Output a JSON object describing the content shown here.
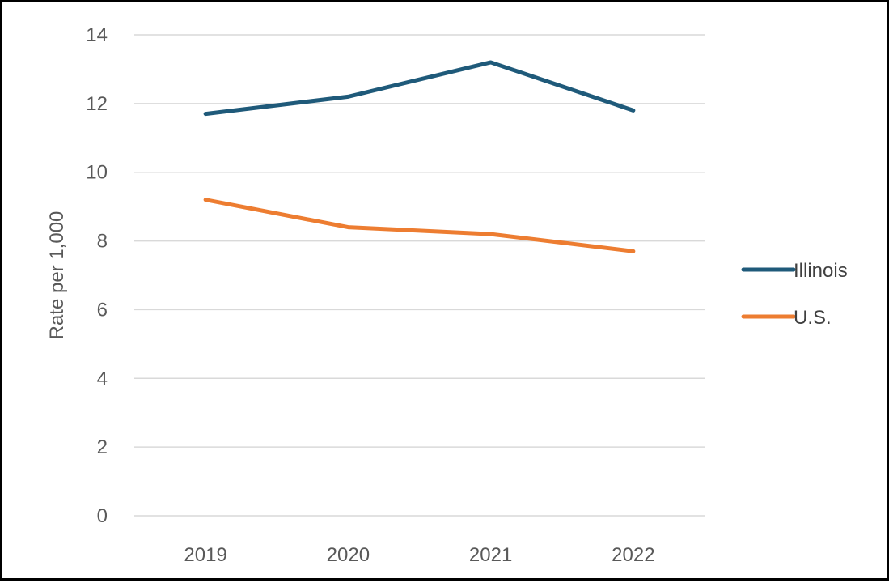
{
  "chart_data": {
    "type": "line",
    "categories": [
      "2019",
      "2020",
      "2021",
      "2022"
    ],
    "series": [
      {
        "name": "Illinois",
        "values": [
          11.7,
          12.2,
          13.2,
          11.8
        ],
        "color": "#1f5a7a"
      },
      {
        "name": "U.S.",
        "values": [
          9.2,
          8.4,
          8.2,
          7.7
        ],
        "color": "#ed7d31"
      }
    ],
    "title": "",
    "xlabel": "",
    "ylabel": "Rate per 1,000",
    "ylim": [
      0,
      14
    ],
    "y_ticks": [
      0,
      2,
      4,
      6,
      8,
      10,
      12,
      14
    ],
    "grid": true,
    "legend_position": "right"
  }
}
